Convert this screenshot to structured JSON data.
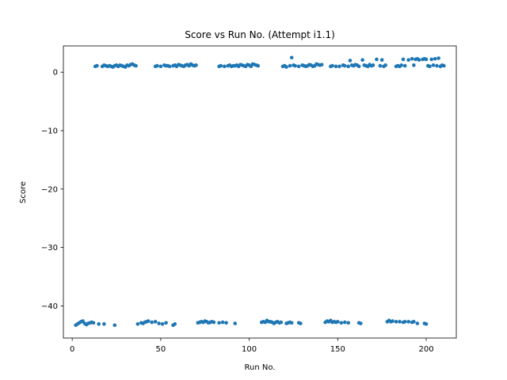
{
  "chart_data": {
    "type": "scatter",
    "title": "Score vs Run No. (Attempt i1.1)",
    "xlabel": "Run No.",
    "ylabel": "Score",
    "xlim": [
      -5,
      217
    ],
    "ylim": [
      -45.5,
      4.5
    ],
    "xticks": [
      0,
      50,
      100,
      150,
      200
    ],
    "yticks": [
      0,
      -10,
      -20,
      -30,
      -40
    ],
    "ytick_labels": [
      "0",
      "−10",
      "−20",
      "−30",
      "−40"
    ],
    "grid": false,
    "legend": "none",
    "color": "#1f77b4",
    "series": [
      {
        "points": [
          [
            2,
            -43.3
          ],
          [
            3,
            -43.1
          ],
          [
            4,
            -42.9
          ],
          [
            5,
            -42.7
          ],
          [
            6,
            -42.6
          ],
          [
            7,
            -43.0
          ],
          [
            8,
            -43.2
          ],
          [
            9,
            -43.0
          ],
          [
            10,
            -42.9
          ],
          [
            11,
            -42.8
          ],
          [
            12,
            -42.9
          ],
          [
            15,
            -43.1
          ],
          [
            18,
            -43.1
          ],
          [
            24,
            -43.3
          ],
          [
            37,
            -43.1
          ],
          [
            39,
            -42.9
          ],
          [
            40,
            -43.0
          ],
          [
            41,
            -42.8
          ],
          [
            42,
            -42.7
          ],
          [
            43,
            -42.6
          ],
          [
            45,
            -42.8
          ],
          [
            47,
            -42.7
          ],
          [
            49,
            -43.0
          ],
          [
            51,
            -43.1
          ],
          [
            53,
            -42.9
          ],
          [
            57,
            -43.3
          ],
          [
            58,
            -43.1
          ],
          [
            71,
            -42.9
          ],
          [
            72,
            -42.8
          ],
          [
            73,
            -42.7
          ],
          [
            74,
            -42.8
          ],
          [
            75,
            -42.6
          ],
          [
            76,
            -42.7
          ],
          [
            77,
            -42.9
          ],
          [
            78,
            -42.8
          ],
          [
            79,
            -42.7
          ],
          [
            80,
            -42.8
          ],
          [
            83,
            -42.9
          ],
          [
            85,
            -42.8
          ],
          [
            87,
            -42.9
          ],
          [
            92,
            -43.0
          ],
          [
            107,
            -42.8
          ],
          [
            108,
            -42.7
          ],
          [
            109,
            -42.8
          ],
          [
            110,
            -42.5
          ],
          [
            111,
            -42.7
          ],
          [
            112,
            -42.7
          ],
          [
            113,
            -42.8
          ],
          [
            114,
            -43.0
          ],
          [
            115,
            -42.8
          ],
          [
            116,
            -42.7
          ],
          [
            117,
            -42.9
          ],
          [
            118,
            -42.8
          ],
          [
            121,
            -43.0
          ],
          [
            122,
            -42.9
          ],
          [
            123,
            -42.8
          ],
          [
            124,
            -42.9
          ],
          [
            128,
            -42.9
          ],
          [
            129,
            -43.0
          ],
          [
            143,
            -42.8
          ],
          [
            144,
            -42.6
          ],
          [
            145,
            -42.7
          ],
          [
            146,
            -42.5
          ],
          [
            147,
            -42.8
          ],
          [
            148,
            -42.7
          ],
          [
            149,
            -42.8
          ],
          [
            150,
            -42.7
          ],
          [
            152,
            -42.9
          ],
          [
            154,
            -42.8
          ],
          [
            156,
            -42.9
          ],
          [
            162,
            -42.9
          ],
          [
            163,
            -43.0
          ],
          [
            178,
            -42.7
          ],
          [
            179,
            -42.5
          ],
          [
            180,
            -42.7
          ],
          [
            181,
            -42.6
          ],
          [
            183,
            -42.7
          ],
          [
            185,
            -42.7
          ],
          [
            187,
            -42.8
          ],
          [
            188,
            -42.7
          ],
          [
            190,
            -42.7
          ],
          [
            192,
            -42.8
          ],
          [
            193,
            -42.7
          ],
          [
            195,
            -43.0
          ],
          [
            199,
            -43.0
          ],
          [
            200,
            -43.1
          ],
          [
            13,
            1.0
          ],
          [
            14,
            1.1
          ],
          [
            17,
            1.0
          ],
          [
            18,
            1.2
          ],
          [
            19,
            1.1
          ],
          [
            20,
            1.0
          ],
          [
            21,
            1.1
          ],
          [
            22,
            1.0
          ],
          [
            23,
            0.9
          ],
          [
            24,
            1.1
          ],
          [
            25,
            1.2
          ],
          [
            26,
            1.0
          ],
          [
            27,
            1.2
          ],
          [
            28,
            1.1
          ],
          [
            29,
            1.0
          ],
          [
            30,
            0.9
          ],
          [
            31,
            1.2
          ],
          [
            32,
            1.1
          ],
          [
            33,
            1.3
          ],
          [
            34,
            1.4
          ],
          [
            35,
            1.2
          ],
          [
            36,
            1.1
          ],
          [
            47,
            1.0
          ],
          [
            48,
            1.1
          ],
          [
            50,
            1.0
          ],
          [
            52,
            1.2
          ],
          [
            53,
            1.1
          ],
          [
            54,
            1.1
          ],
          [
            55,
            1.0
          ],
          [
            57,
            1.1
          ],
          [
            58,
            1.2
          ],
          [
            59,
            1.0
          ],
          [
            60,
            1.3
          ],
          [
            61,
            1.2
          ],
          [
            62,
            1.1
          ],
          [
            63,
            1.0
          ],
          [
            64,
            1.2
          ],
          [
            65,
            1.3
          ],
          [
            66,
            1.1
          ],
          [
            67,
            1.4
          ],
          [
            68,
            1.2
          ],
          [
            69,
            1.1
          ],
          [
            70,
            1.2
          ],
          [
            83,
            1.0
          ],
          [
            84,
            1.1
          ],
          [
            86,
            1.0
          ],
          [
            88,
            1.1
          ],
          [
            89,
            1.2
          ],
          [
            90,
            1.0
          ],
          [
            91,
            1.1
          ],
          [
            92,
            1.1
          ],
          [
            93,
            1.2
          ],
          [
            94,
            1.0
          ],
          [
            95,
            1.3
          ],
          [
            96,
            1.2
          ],
          [
            97,
            1.1
          ],
          [
            98,
            1.0
          ],
          [
            99,
            1.3
          ],
          [
            100,
            1.2
          ],
          [
            101,
            1.0
          ],
          [
            102,
            1.4
          ],
          [
            103,
            1.3
          ],
          [
            104,
            1.2
          ],
          [
            105,
            1.1
          ],
          [
            119,
            1.0
          ],
          [
            120,
            1.1
          ],
          [
            121,
            0.9
          ],
          [
            123,
            1.1
          ],
          [
            124,
            2.5
          ],
          [
            125,
            1.2
          ],
          [
            126,
            1.1
          ],
          [
            128,
            1.0
          ],
          [
            130,
            1.2
          ],
          [
            131,
            1.1
          ],
          [
            132,
            1.0
          ],
          [
            133,
            1.1
          ],
          [
            134,
            1.3
          ],
          [
            135,
            1.2
          ],
          [
            136,
            1.0
          ],
          [
            137,
            1.1
          ],
          [
            138,
            1.4
          ],
          [
            139,
            1.3
          ],
          [
            140,
            1.2
          ],
          [
            141,
            1.3
          ],
          [
            146,
            1.0
          ],
          [
            147,
            1.1
          ],
          [
            149,
            1.0
          ],
          [
            151,
            1.0
          ],
          [
            153,
            1.2
          ],
          [
            154,
            1.1
          ],
          [
            156,
            1.0
          ],
          [
            157,
            2.0
          ],
          [
            158,
            1.2
          ],
          [
            159,
            1.1
          ],
          [
            160,
            1.3
          ],
          [
            161,
            1.2
          ],
          [
            162,
            1.0
          ],
          [
            164,
            2.1
          ],
          [
            165,
            1.2
          ],
          [
            166,
            1.1
          ],
          [
            167,
            1.0
          ],
          [
            168,
            1.3
          ],
          [
            169,
            1.1
          ],
          [
            170,
            1.2
          ],
          [
            172,
            2.2
          ],
          [
            174,
            1.1
          ],
          [
            175,
            2.1
          ],
          [
            176,
            1.0
          ],
          [
            177,
            1.2
          ],
          [
            183,
            1.0
          ],
          [
            184,
            1.1
          ],
          [
            185,
            1.0
          ],
          [
            186,
            1.2
          ],
          [
            187,
            2.2
          ],
          [
            188,
            1.1
          ],
          [
            190,
            2.1
          ],
          [
            192,
            2.3
          ],
          [
            193,
            1.2
          ],
          [
            194,
            2.2
          ],
          [
            195,
            2.3
          ],
          [
            196,
            2.1
          ],
          [
            198,
            2.2
          ],
          [
            199,
            2.3
          ],
          [
            200,
            2.2
          ],
          [
            201,
            1.1
          ],
          [
            202,
            1.0
          ],
          [
            203,
            2.2
          ],
          [
            204,
            1.2
          ],
          [
            205,
            2.3
          ],
          [
            206,
            1.1
          ],
          [
            207,
            2.4
          ],
          [
            208,
            1.0
          ],
          [
            209,
            1.2
          ],
          [
            210,
            1.1
          ]
        ]
      }
    ]
  }
}
